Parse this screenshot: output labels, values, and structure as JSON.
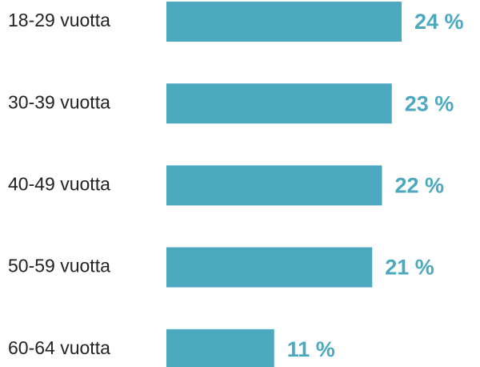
{
  "chart_data": {
    "type": "bar",
    "orientation": "horizontal",
    "categories": [
      "18-29 vuotta",
      "30-39 vuotta",
      "40-49 vuotta",
      "50-59 vuotta",
      "60-64 vuotta"
    ],
    "values": [
      24,
      23,
      22,
      21,
      11
    ],
    "value_labels": [
      "24 %",
      "23 %",
      "22 %",
      "21 %",
      "11 %"
    ],
    "color": "#4ba8bf"
  }
}
